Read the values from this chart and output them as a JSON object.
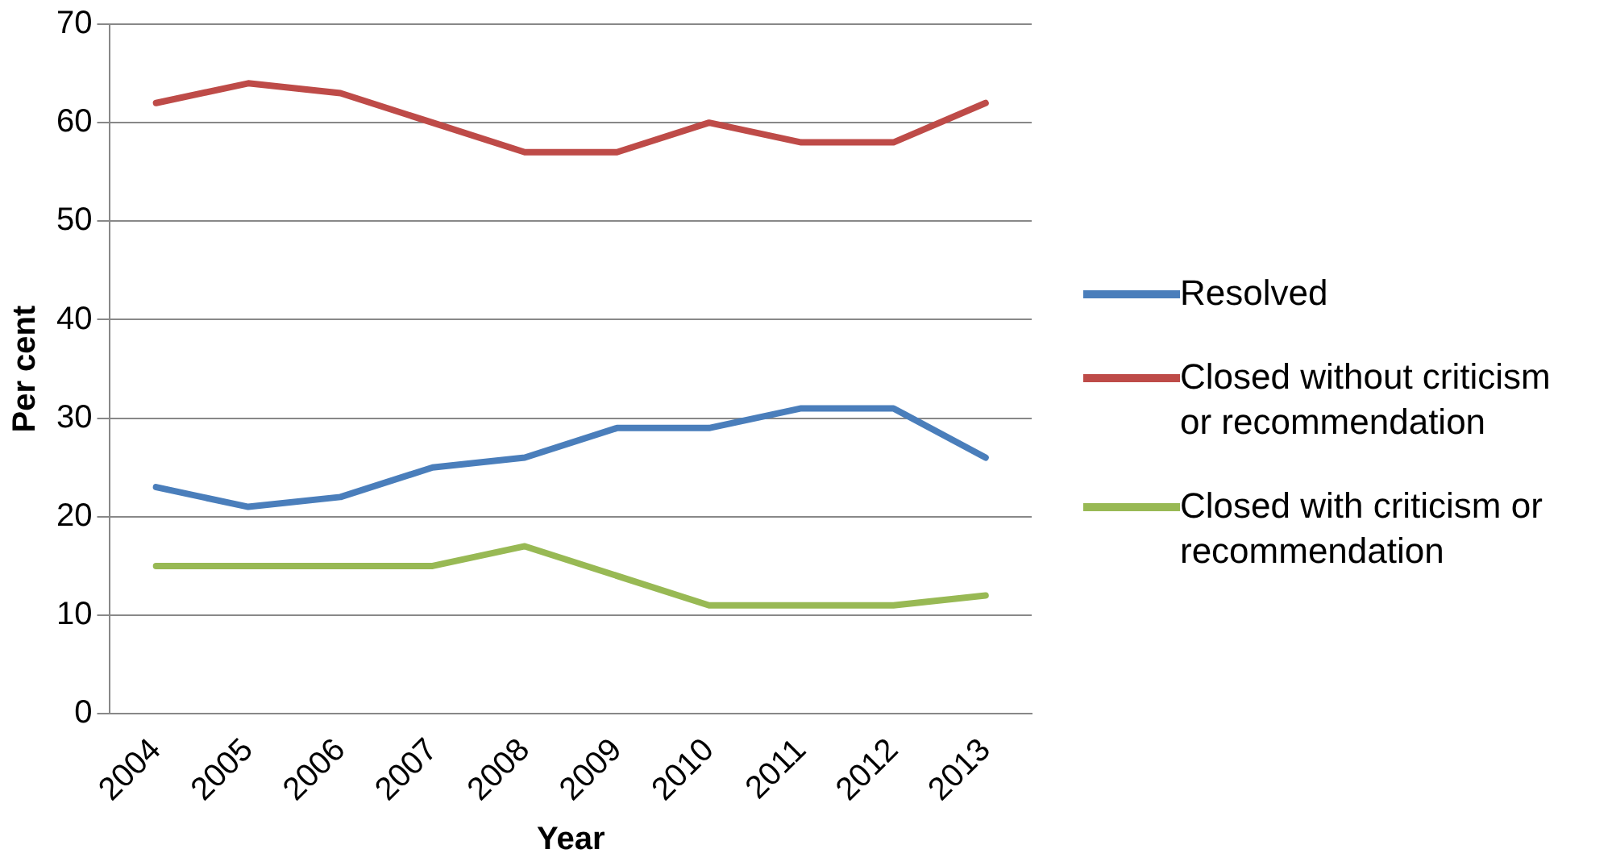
{
  "chart_data": {
    "type": "line",
    "xlabel": "Year",
    "ylabel": "Per cent",
    "categories": [
      "2004",
      "2005",
      "2006",
      "2007",
      "2008",
      "2009",
      "2010",
      "2011",
      "2012",
      "2013"
    ],
    "series": [
      {
        "name": "Resolved",
        "color": "#4a7ebb",
        "values": [
          23,
          21,
          22,
          25,
          26,
          29,
          29,
          31,
          31,
          26
        ]
      },
      {
        "name": "Closed without criticism or recommendation",
        "color": "#be4b48",
        "values": [
          62,
          64,
          63,
          60,
          57,
          57,
          60,
          58,
          58,
          62
        ]
      },
      {
        "name": "Closed with criticism or recommendation",
        "color": "#98b954",
        "values": [
          15,
          15,
          15,
          15,
          17,
          14,
          11,
          11,
          11,
          12
        ]
      }
    ],
    "ylim": [
      0,
      70
    ],
    "yticks": [
      0,
      10,
      20,
      30,
      40,
      50,
      60,
      70
    ],
    "grid": "y",
    "legend": "right",
    "marker": "none",
    "line_style": "solid"
  }
}
